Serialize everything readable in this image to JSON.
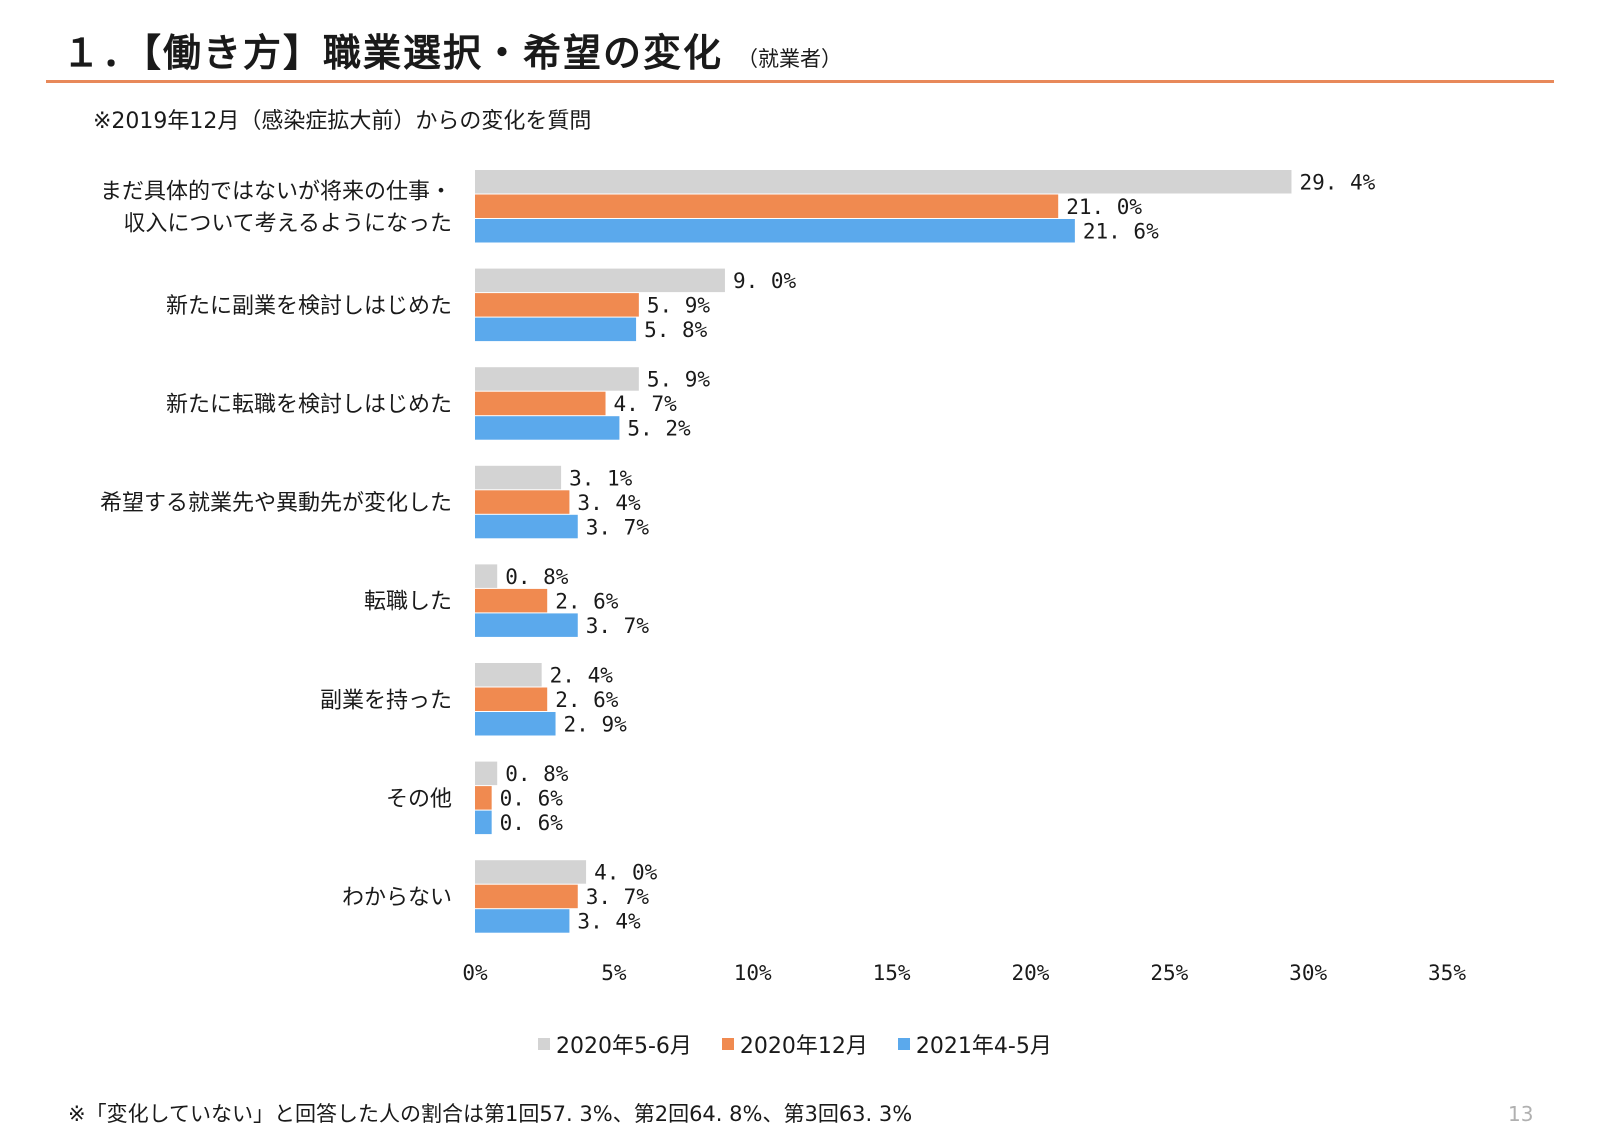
{
  "header": {
    "title": "１．【働き方】職業選択・希望の変化",
    "subtitle": "（就業者）",
    "note": "※2019年12月（感染症拡大前）からの変化を質問"
  },
  "colors": {
    "series_0": "#d3d3d3",
    "series_1": "#f08a50",
    "series_2": "#5ba9ec",
    "rule": "#e8895a"
  },
  "chart_data": {
    "type": "bar",
    "orientation": "horizontal",
    "categories": [
      [
        "まだ具体的ではないが将来の仕事・",
        "収入について考えるようになった"
      ],
      [
        "新たに副業を検討しはじめた"
      ],
      [
        "新たに転職を検討しはじめた"
      ],
      [
        "希望する就業先や異動先が変化した"
      ],
      [
        "転職した"
      ],
      [
        "副業を持った"
      ],
      [
        "その他"
      ],
      [
        "わからない"
      ]
    ],
    "series": [
      {
        "name": "2020年5-6月",
        "values": [
          29.4,
          9.0,
          5.9,
          3.1,
          0.8,
          2.4,
          0.8,
          4.0
        ]
      },
      {
        "name": "2020年12月",
        "values": [
          21.0,
          5.9,
          4.7,
          3.4,
          2.6,
          2.6,
          0.6,
          3.7
        ]
      },
      {
        "name": "2021年4-5月",
        "values": [
          21.6,
          5.8,
          5.2,
          3.7,
          3.7,
          2.9,
          0.6,
          3.4
        ]
      }
    ],
    "value_labels": [
      [
        "29. 4%",
        "9. 0%",
        "5. 9%",
        "3. 1%",
        "0. 8%",
        "2. 4%",
        "0. 8%",
        "4. 0%"
      ],
      [
        "21. 0%",
        "5. 9%",
        "4. 7%",
        "3. 4%",
        "2. 6%",
        "2. 6%",
        "0. 6%",
        "3. 7%"
      ],
      [
        "21. 6%",
        "5. 8%",
        "5. 2%",
        "3. 7%",
        "3. 7%",
        "2. 9%",
        "0. 6%",
        "3. 4%"
      ]
    ],
    "x_ticks": [
      0,
      5,
      10,
      15,
      20,
      25,
      30,
      35
    ],
    "x_tick_labels": [
      "0%",
      "5%",
      "10%",
      "15%",
      "20%",
      "25%",
      "30%",
      "35%"
    ],
    "xlim": [
      0,
      35
    ],
    "legend_position": "bottom",
    "grid": false
  },
  "footnote": "※「変化していない」と回答した人の割合は第1回57. 3%、第2回64. 8%、第3回63. 3%",
  "page_number": "13"
}
